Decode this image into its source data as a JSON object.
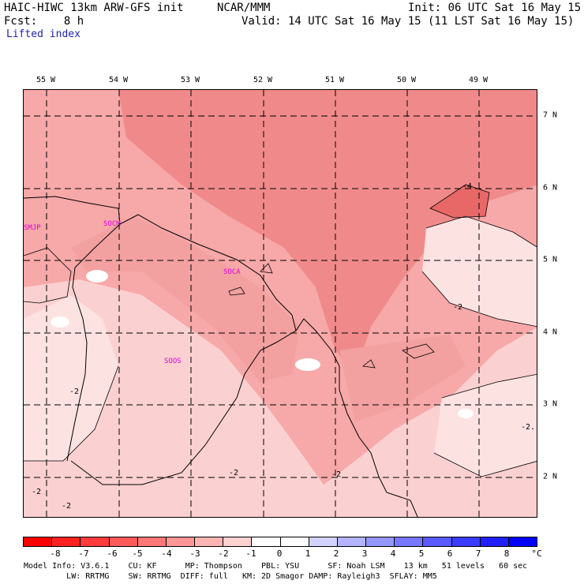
{
  "header": {
    "model_name": "HAIC-HIWC 13km ARW-GFS init",
    "org": "NCAR/MMM",
    "init": "Init: 06 UTC Sat 16 May 15",
    "fcst": "Fcst:    8 h",
    "valid": "Valid: 14 UTC Sat 16 May 15 (11 LST Sat 16 May 15)",
    "field": "Lifted index"
  },
  "map": {
    "longitude_labels": [
      "55 W",
      "54 W",
      "53 W",
      "52 W",
      "51 W",
      "50 W",
      "49 W"
    ],
    "latitude_labels": [
      "7 N",
      "6 N",
      "5 N",
      "4 N",
      "3 N",
      "2 N"
    ],
    "stations": [
      "SMJP",
      "SOCM",
      "SOCA",
      "SOOS"
    ],
    "contour_labels": [
      "-4",
      "-2",
      "-2",
      "-2",
      "-2",
      "-2",
      "-2",
      "-2."
    ],
    "colors": {
      "background": "#fbd0d0",
      "mid": "#f7a8a8",
      "strong": "#f08a8a",
      "core": "#e86868",
      "light": "#fde2e2",
      "white": "#ffffff"
    }
  },
  "legend": {
    "tick_labels": [
      "-8",
      "-7",
      "-6",
      "-5",
      "-4",
      "-3",
      "-2",
      "-1",
      "0",
      "1",
      "2",
      "3",
      "4",
      "5",
      "6",
      "7",
      "8"
    ],
    "unit": "°C",
    "colors": [
      "#ff0000",
      "#ff2020",
      "#ff3c3c",
      "#ff5a5a",
      "#ff7878",
      "#ff9696",
      "#ffb4b4",
      "#ffd2d2",
      "#ffffff",
      "#ffffff",
      "#d2d2ff",
      "#b4b4ff",
      "#9696ff",
      "#7878ff",
      "#5a5aff",
      "#3c3cff",
      "#2020ff",
      "#0000ff"
    ]
  },
  "footer": {
    "line1": "Model Info: V3.6.1    CU: KF      MP: Thompson    PBL: YSU      SF: Noah LSM    13 km   51 levels   60 sec",
    "line2": "         LW: RRTMG    SW: RRTMG  DIFF: full   KM: 2D Smagor DAMP: Rayleigh3  SFLAY: MM5"
  }
}
